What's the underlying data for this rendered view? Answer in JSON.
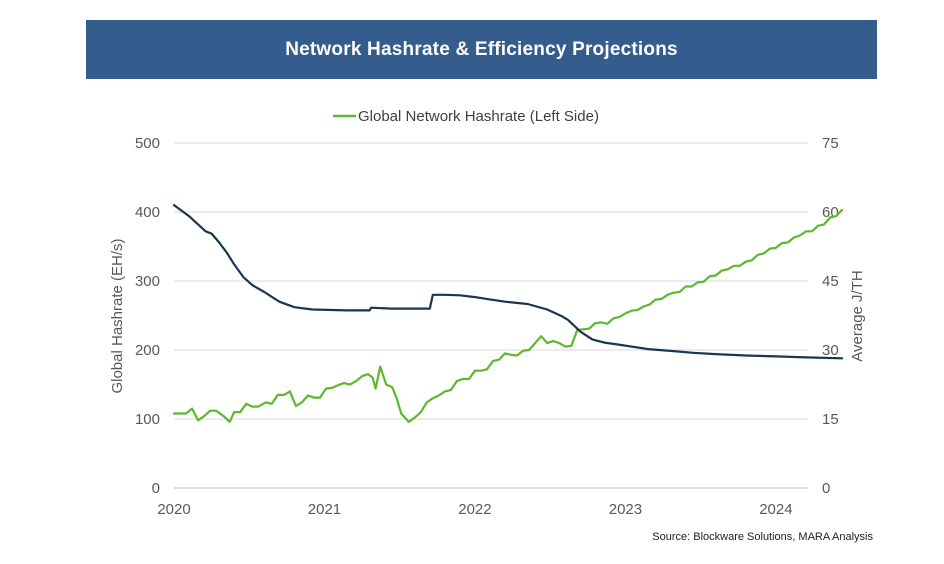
{
  "title": "Network Hashrate & Efficiency Projections",
  "source": "Source: Blockware Solutions, MARA Analysis",
  "colors": {
    "title_bg": "#345d8e",
    "hashrate": "#5db82e",
    "efficiency": "#1a3550",
    "grid": "#d9d9d9",
    "axis_text": "#595959"
  },
  "chart_data": {
    "type": "line",
    "legend": {
      "placement": "top-center",
      "entries": [
        "Global Network Hashrate (Left Side)"
      ]
    },
    "ylabel_left": "Global Hashrate (EH/s)",
    "ylabel_right": "Average J/TH",
    "xlim": [
      2020,
      2024.3
    ],
    "ylim_left": [
      0,
      500
    ],
    "ylim_right": [
      0,
      75
    ],
    "grid": true,
    "x_ticks": [
      {
        "value": 2020,
        "label": "2020"
      },
      {
        "value": 2021,
        "label": "2021"
      },
      {
        "value": 2022,
        "label": "2022"
      },
      {
        "value": 2023,
        "label": "2023"
      },
      {
        "value": 2024,
        "label": "2024"
      }
    ],
    "y_left_ticks": [
      {
        "value": 0,
        "label": "0"
      },
      {
        "value": 100,
        "label": "100"
      },
      {
        "value": 200,
        "label": "200"
      },
      {
        "value": 300,
        "label": "300"
      },
      {
        "value": 400,
        "label": "400"
      },
      {
        "value": 500,
        "label": "500"
      }
    ],
    "y_right_ticks": [
      {
        "value": 0,
        "label": "0"
      },
      {
        "value": 15,
        "label": "15"
      },
      {
        "value": 30,
        "label": "30"
      },
      {
        "value": 45,
        "label": "45"
      },
      {
        "value": 60,
        "label": "60"
      },
      {
        "value": 75,
        "label": "75"
      }
    ],
    "series": [
      {
        "name": "Global Network Hashrate (Left Side)",
        "axis": "left",
        "color": "#5db82e",
        "points": [
          [
            2020.0,
            108
          ],
          [
            2020.08,
            108
          ],
          [
            2020.12,
            115
          ],
          [
            2020.16,
            98
          ],
          [
            2020.2,
            104
          ],
          [
            2020.24,
            112
          ],
          [
            2020.28,
            112
          ],
          [
            2020.33,
            104
          ],
          [
            2020.37,
            96
          ],
          [
            2020.4,
            110
          ],
          [
            2020.44,
            110
          ],
          [
            2020.48,
            122
          ],
          [
            2020.52,
            118
          ],
          [
            2020.56,
            118
          ],
          [
            2020.61,
            124
          ],
          [
            2020.65,
            122
          ],
          [
            2020.69,
            135
          ],
          [
            2020.73,
            135
          ],
          [
            2020.77,
            140
          ],
          [
            2020.81,
            119
          ],
          [
            2020.85,
            124
          ],
          [
            2020.89,
            134
          ],
          [
            2020.93,
            131
          ],
          [
            2020.97,
            131
          ],
          [
            2021.01,
            144
          ],
          [
            2021.05,
            145
          ],
          [
            2021.09,
            149
          ],
          [
            2021.13,
            152
          ],
          [
            2021.17,
            150
          ],
          [
            2021.21,
            155
          ],
          [
            2021.25,
            162
          ],
          [
            2021.29,
            165
          ],
          [
            2021.32,
            160
          ],
          [
            2021.34,
            144
          ],
          [
            2021.37,
            176
          ],
          [
            2021.41,
            150
          ],
          [
            2021.45,
            146
          ],
          [
            2021.48,
            130
          ],
          [
            2021.51,
            108
          ],
          [
            2021.56,
            96
          ],
          [
            2021.6,
            102
          ],
          [
            2021.64,
            110
          ],
          [
            2021.68,
            124
          ],
          [
            2021.72,
            130
          ],
          [
            2021.76,
            134
          ],
          [
            2021.8,
            140
          ],
          [
            2021.84,
            142
          ],
          [
            2021.88,
            155
          ],
          [
            2021.92,
            158
          ],
          [
            2021.96,
            158
          ],
          [
            2022.0,
            170
          ],
          [
            2022.04,
            170
          ],
          [
            2022.08,
            172
          ],
          [
            2022.12,
            184
          ],
          [
            2022.16,
            186
          ],
          [
            2022.2,
            195
          ],
          [
            2022.24,
            193
          ],
          [
            2022.28,
            192
          ],
          [
            2022.32,
            199
          ],
          [
            2022.36,
            200
          ],
          [
            2022.4,
            210
          ],
          [
            2022.44,
            220
          ],
          [
            2022.48,
            210
          ],
          [
            2022.52,
            213
          ],
          [
            2022.56,
            210
          ],
          [
            2022.6,
            205
          ],
          [
            2022.64,
            206
          ],
          [
            2022.68,
            229
          ],
          [
            2022.72,
            230
          ],
          [
            2022.76,
            231
          ],
          [
            2022.8,
            239
          ],
          [
            2022.84,
            240
          ],
          [
            2022.88,
            238
          ],
          [
            2022.92,
            246
          ],
          [
            2022.96,
            248
          ],
          [
            2023.0,
            253
          ],
          [
            2023.04,
            257
          ],
          [
            2023.08,
            258
          ],
          [
            2023.12,
            263
          ],
          [
            2023.16,
            266
          ],
          [
            2023.2,
            273
          ],
          [
            2023.24,
            274
          ],
          [
            2023.28,
            280
          ],
          [
            2023.32,
            283
          ],
          [
            2023.36,
            284
          ],
          [
            2023.4,
            292
          ],
          [
            2023.44,
            292
          ],
          [
            2023.48,
            298
          ],
          [
            2023.52,
            299
          ],
          [
            2023.56,
            307
          ],
          [
            2023.6,
            308
          ],
          [
            2023.64,
            315
          ],
          [
            2023.68,
            317
          ],
          [
            2023.72,
            322
          ],
          [
            2023.76,
            322
          ],
          [
            2023.8,
            328
          ],
          [
            2023.84,
            330
          ],
          [
            2023.88,
            338
          ],
          [
            2023.92,
            340
          ],
          [
            2023.96,
            347
          ],
          [
            2024.0,
            348
          ],
          [
            2024.04,
            355
          ],
          [
            2024.08,
            356
          ],
          [
            2024.12,
            363
          ],
          [
            2024.16,
            366
          ],
          [
            2024.2,
            372
          ],
          [
            2024.24,
            372
          ],
          [
            2024.28,
            380
          ],
          [
            2024.32,
            382
          ],
          [
            2024.36,
            392
          ],
          [
            2024.4,
            394
          ],
          [
            2024.44,
            403
          ]
        ]
      },
      {
        "axis": "right",
        "color": "#1a3550",
        "points": [
          [
            2020.0,
            61.5
          ],
          [
            2020.05,
            60.3
          ],
          [
            2020.1,
            59.1
          ],
          [
            2020.16,
            57.3
          ],
          [
            2020.21,
            55.8
          ],
          [
            2020.25,
            55.3
          ],
          [
            2020.3,
            53.4
          ],
          [
            2020.35,
            51.2
          ],
          [
            2020.4,
            48.6
          ],
          [
            2020.46,
            45.9
          ],
          [
            2020.52,
            44.1
          ],
          [
            2020.6,
            42.6
          ],
          [
            2020.7,
            40.5
          ],
          [
            2020.8,
            39.3
          ],
          [
            2020.92,
            38.8
          ],
          [
            2021.05,
            38.7
          ],
          [
            2021.15,
            38.6
          ],
          [
            2021.3,
            38.6
          ],
          [
            2021.31,
            39.2
          ],
          [
            2021.45,
            39.0
          ],
          [
            2021.6,
            39.0
          ],
          [
            2021.7,
            39.0
          ],
          [
            2021.72,
            42.0
          ],
          [
            2021.8,
            42.0
          ],
          [
            2021.9,
            41.9
          ],
          [
            2022.0,
            41.5
          ],
          [
            2022.1,
            41.0
          ],
          [
            2022.2,
            40.5
          ],
          [
            2022.35,
            40.0
          ],
          [
            2022.48,
            38.8
          ],
          [
            2022.58,
            37.3
          ],
          [
            2022.62,
            36.5
          ],
          [
            2022.7,
            34.0
          ],
          [
            2022.78,
            32.3
          ],
          [
            2022.86,
            31.6
          ],
          [
            2022.95,
            31.2
          ],
          [
            2023.05,
            30.7
          ],
          [
            2023.15,
            30.2
          ],
          [
            2023.3,
            29.8
          ],
          [
            2023.45,
            29.4
          ],
          [
            2023.6,
            29.1
          ],
          [
            2023.8,
            28.8
          ],
          [
            2024.0,
            28.6
          ],
          [
            2024.2,
            28.4
          ],
          [
            2024.44,
            28.2
          ]
        ]
      }
    ]
  }
}
